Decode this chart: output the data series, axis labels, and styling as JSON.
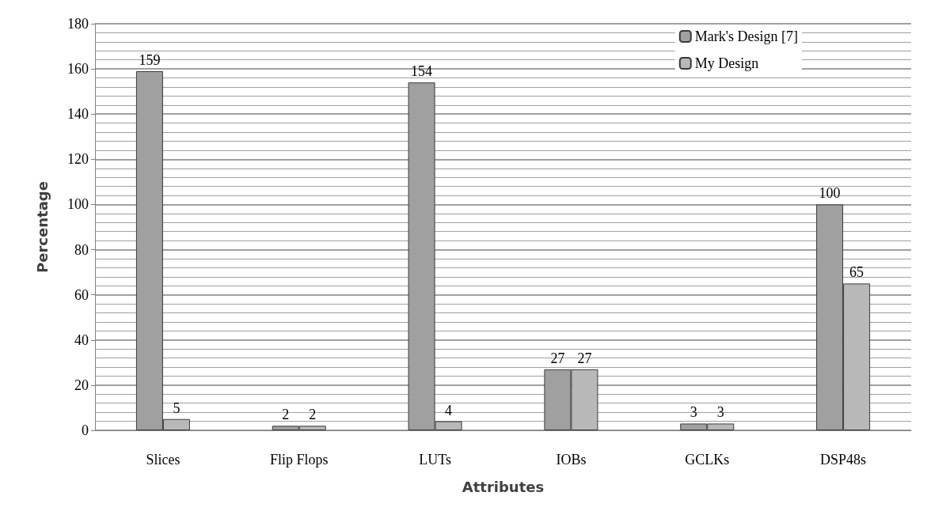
{
  "chart_data": {
    "type": "bar",
    "xlabel": "Attributes",
    "ylabel": "Percentage",
    "categories": [
      "Slices",
      "Flip Flops",
      "LUTs",
      "IOBs",
      "GCLKs",
      "DSP48s"
    ],
    "series": [
      {
        "name": "Mark's Design [7]",
        "color": "#a0a0a0",
        "values": [
          159,
          2,
          154,
          27,
          3,
          100
        ]
      },
      {
        "name": "My Design",
        "color": "#b8b8b8",
        "values": [
          5,
          2,
          4,
          27,
          3,
          65
        ]
      }
    ],
    "ylim": [
      0,
      180
    ],
    "yticks": [
      0,
      {
        "value": 4,
        "label": null
      },
      {
        "value": 8,
        "label": null
      },
      {
        "value": 12,
        "label": null
      },
      {
        "value": 16,
        "label": null
      },
      20,
      {
        "value": 24,
        "label": null
      },
      {
        "value": 28,
        "label": null
      },
      {
        "value": 32,
        "label": null
      },
      {
        "value": 36,
        "label": null
      },
      40,
      {
        "value": 44,
        "label": null
      },
      {
        "value": 48,
        "label": null
      },
      {
        "value": 52,
        "label": null
      },
      {
        "value": 56,
        "label": null
      },
      60,
      {
        "value": 64,
        "label": null
      },
      {
        "value": 68,
        "label": null
      },
      {
        "value": 72,
        "label": null
      },
      {
        "value": 76,
        "label": null
      },
      80,
      {
        "value": 84,
        "label": null
      },
      {
        "value": 88,
        "label": null
      },
      {
        "value": 92,
        "label": null
      },
      {
        "value": 96,
        "label": null
      },
      100,
      {
        "value": 104,
        "label": null
      },
      {
        "value": 108,
        "label": null
      },
      {
        "value": 112,
        "label": null
      },
      {
        "value": 116,
        "label": null
      },
      120,
      {
        "value": 124,
        "label": null
      },
      {
        "value": 128,
        "label": null
      },
      {
        "value": 132,
        "label": null
      },
      {
        "value": 136,
        "label": null
      },
      140,
      {
        "value": 144,
        "label": null
      },
      {
        "value": 148,
        "label": null
      },
      {
        "value": 152,
        "label": null
      },
      {
        "value": 156,
        "label": null
      },
      160,
      {
        "value": 164,
        "label": null
      },
      {
        "value": 168,
        "label": null
      },
      {
        "value": 172,
        "label": null
      },
      {
        "value": 176,
        "label": null
      },
      180
    ],
    "grid": "y",
    "legend": "top right",
    "data_labels": true
  }
}
